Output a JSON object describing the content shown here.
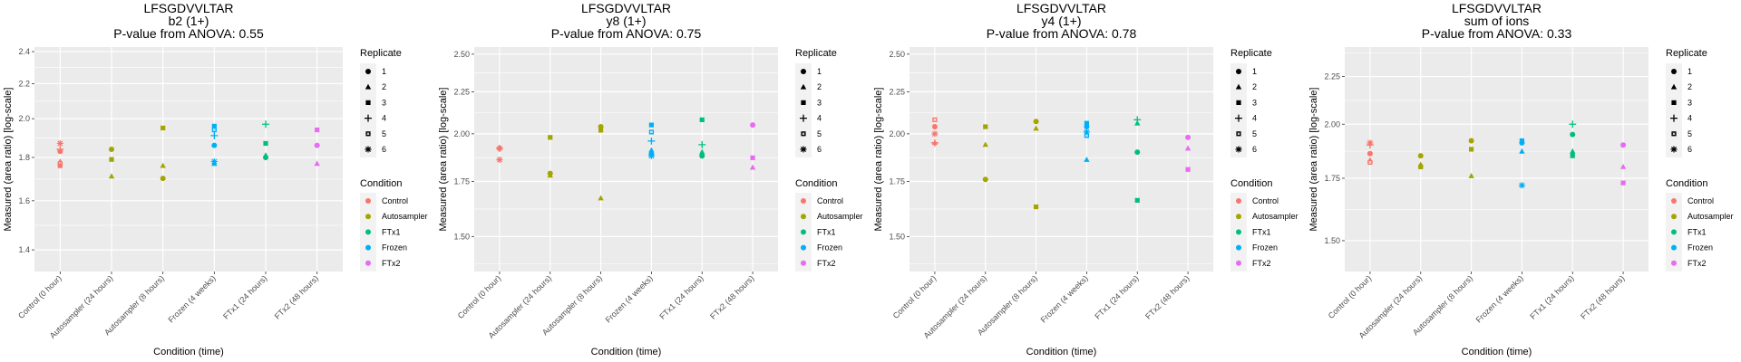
{
  "legend": {
    "shape_title": "Replicate",
    "shape_labels": [
      "1",
      "2",
      "3",
      "4",
      "5",
      "6"
    ],
    "shape_types": [
      "circle",
      "triangle",
      "square",
      "plus",
      "square-cross",
      "asterisk"
    ],
    "color_title": "Condition",
    "color_labels": [
      "Control",
      "Autosampler",
      "FTx1",
      "Frozen",
      "FTx2"
    ],
    "colors": {
      "Control": "#F8766D",
      "Autosampler": "#A3A500",
      "FTx1": "#00BF7D",
      "Frozen": "#00B0F6",
      "FTx2": "#E76BF3"
    }
  },
  "chart_data": [
    {
      "type": "scatter",
      "title": [
        "LFSGDVVLTAR",
        "b2 (1+)",
        "P-value from ANOVA: 0.55"
      ],
      "xlabel": "Condition (time)",
      "ylabel": "Measured (area ratio) [log-scale]",
      "yscale": "log",
      "ylim": [
        1.32,
        2.43
      ],
      "yticks": [
        1.4,
        1.6,
        1.8,
        2.0,
        2.2,
        2.4
      ],
      "ytick_labels": [
        "1.4",
        "1.6",
        "1.8",
        "2.0",
        "2.2",
        "2.4"
      ],
      "categories": [
        "Control (0 hour)",
        "Autosampler (24 hours)",
        "Autosampler (8 hours)",
        "Frozen (4 weeks)",
        "FTx1 (24 hours)",
        "FTx2 (48 hours)"
      ],
      "category_condition": [
        "Control",
        "Autosampler",
        "Autosampler",
        "Frozen",
        "FTx1",
        "FTx2"
      ],
      "grid": true,
      "legend_position": "right",
      "points": [
        {
          "cat": 0,
          "rep": 6,
          "y": 1.87
        },
        {
          "cat": 0,
          "rep": 1,
          "y": 1.83
        },
        {
          "cat": 0,
          "rep": 4,
          "y": 1.84
        },
        {
          "cat": 0,
          "rep": 2,
          "y": 1.78
        },
        {
          "cat": 0,
          "rep": 5,
          "y": 1.77
        },
        {
          "cat": 0,
          "rep": 3,
          "y": 1.76
        },
        {
          "cat": 1,
          "rep": 1,
          "y": 1.84
        },
        {
          "cat": 1,
          "rep": 3,
          "y": 1.79
        },
        {
          "cat": 1,
          "rep": 2,
          "y": 1.71
        },
        {
          "cat": 2,
          "rep": 3,
          "y": 1.95
        },
        {
          "cat": 2,
          "rep": 2,
          "y": 1.76
        },
        {
          "cat": 2,
          "rep": 1,
          "y": 1.7
        },
        {
          "cat": 3,
          "rep": 3,
          "y": 1.96
        },
        {
          "cat": 3,
          "rep": 5,
          "y": 1.94
        },
        {
          "cat": 3,
          "rep": 4,
          "y": 1.91
        },
        {
          "cat": 3,
          "rep": 1,
          "y": 1.86
        },
        {
          "cat": 3,
          "rep": 6,
          "y": 1.78
        },
        {
          "cat": 3,
          "rep": 2,
          "y": 1.77
        },
        {
          "cat": 4,
          "rep": 4,
          "y": 1.97
        },
        {
          "cat": 4,
          "rep": 3,
          "y": 1.87
        },
        {
          "cat": 4,
          "rep": 2,
          "y": 1.81
        },
        {
          "cat": 4,
          "rep": 1,
          "y": 1.8
        },
        {
          "cat": 5,
          "rep": 3,
          "y": 1.94
        },
        {
          "cat": 5,
          "rep": 1,
          "y": 1.86
        },
        {
          "cat": 5,
          "rep": 2,
          "y": 1.77
        }
      ]
    },
    {
      "type": "scatter",
      "title": [
        "LFSGDVVLTAR",
        "y8 (1+)",
        "P-value from ANOVA: 0.75"
      ],
      "xlabel": "Condition (time)",
      "ylabel": "Measured (area ratio) [log-scale]",
      "yscale": "log",
      "ylim": [
        1.36,
        2.55
      ],
      "yticks": [
        1.5,
        1.75,
        2.0,
        2.25,
        2.5
      ],
      "ytick_labels": [
        "1.50",
        "1.75",
        "2.00",
        "2.25",
        "2.50"
      ],
      "categories": [
        "Control (0 hour)",
        "Autosampler (24 hours)",
        "Autosampler (8 hours)",
        "Frozen (4 weeks)",
        "FTx1 (24 hours)",
        "FTx2 (48 hours)"
      ],
      "category_condition": [
        "Control",
        "Autosampler",
        "Autosampler",
        "Frozen",
        "FTx1",
        "FTx2"
      ],
      "grid": true,
      "legend_position": "right",
      "points": [
        {
          "cat": 0,
          "rep": 3,
          "y": 1.92
        },
        {
          "cat": 0,
          "rep": 4,
          "y": 1.92
        },
        {
          "cat": 0,
          "rep": 6,
          "y": 1.86
        },
        {
          "cat": 1,
          "rep": 3,
          "y": 1.98
        },
        {
          "cat": 1,
          "rep": 1,
          "y": 1.79
        },
        {
          "cat": 1,
          "rep": 2,
          "y": 1.78
        },
        {
          "cat": 2,
          "rep": 1,
          "y": 2.04
        },
        {
          "cat": 2,
          "rep": 3,
          "y": 2.02
        },
        {
          "cat": 2,
          "rep": 2,
          "y": 1.67
        },
        {
          "cat": 3,
          "rep": 3,
          "y": 2.05
        },
        {
          "cat": 3,
          "rep": 5,
          "y": 2.01
        },
        {
          "cat": 3,
          "rep": 4,
          "y": 1.96
        },
        {
          "cat": 3,
          "rep": 2,
          "y": 1.91
        },
        {
          "cat": 3,
          "rep": 1,
          "y": 1.89
        },
        {
          "cat": 3,
          "rep": 6,
          "y": 1.88
        },
        {
          "cat": 4,
          "rep": 3,
          "y": 2.08
        },
        {
          "cat": 4,
          "rep": 4,
          "y": 1.94
        },
        {
          "cat": 4,
          "rep": 2,
          "y": 1.9
        },
        {
          "cat": 4,
          "rep": 1,
          "y": 1.88
        },
        {
          "cat": 5,
          "rep": 1,
          "y": 2.05
        },
        {
          "cat": 5,
          "rep": 3,
          "y": 1.87
        },
        {
          "cat": 5,
          "rep": 2,
          "y": 1.82
        }
      ]
    },
    {
      "type": "scatter",
      "title": [
        "LFSGDVVLTAR",
        "y4 (1+)",
        "P-value from ANOVA: 0.78"
      ],
      "xlabel": "Condition (time)",
      "ylabel": "Measured (area ratio) [log-scale]",
      "yscale": "log",
      "ylim": [
        1.36,
        2.55
      ],
      "yticks": [
        1.5,
        1.75,
        2.0,
        2.25,
        2.5
      ],
      "ytick_labels": [
        "1.50",
        "1.75",
        "2.00",
        "2.25",
        "2.50"
      ],
      "categories": [
        "Control (0 hour)",
        "Autosampler (24 hours)",
        "Autosampler (8 hours)",
        "Frozen (4 weeks)",
        "FTx1 (24 hours)",
        "FTx2 (48 hours)"
      ],
      "category_condition": [
        "Control",
        "Autosampler",
        "Autosampler",
        "Frozen",
        "FTx1",
        "FTx2"
      ],
      "grid": true,
      "legend_position": "right",
      "points": [
        {
          "cat": 0,
          "rep": 5,
          "y": 2.08
        },
        {
          "cat": 0,
          "rep": 1,
          "y": 2.04
        },
        {
          "cat": 0,
          "rep": 6,
          "y": 2.0
        },
        {
          "cat": 0,
          "rep": 2,
          "y": 1.95
        },
        {
          "cat": 0,
          "rep": 4,
          "y": 1.95
        },
        {
          "cat": 1,
          "rep": 3,
          "y": 2.04
        },
        {
          "cat": 1,
          "rep": 2,
          "y": 1.94
        },
        {
          "cat": 1,
          "rep": 1,
          "y": 1.76
        },
        {
          "cat": 2,
          "rep": 1,
          "y": 2.07
        },
        {
          "cat": 2,
          "rep": 2,
          "y": 2.03
        },
        {
          "cat": 2,
          "rep": 3,
          "y": 1.63
        },
        {
          "cat": 3,
          "rep": 3,
          "y": 2.06
        },
        {
          "cat": 3,
          "rep": 1,
          "y": 2.04
        },
        {
          "cat": 3,
          "rep": 6,
          "y": 2.01
        },
        {
          "cat": 3,
          "rep": 5,
          "y": 1.99
        },
        {
          "cat": 3,
          "rep": 2,
          "y": 1.86
        },
        {
          "cat": 4,
          "rep": 4,
          "y": 2.08
        },
        {
          "cat": 4,
          "rep": 2,
          "y": 2.06
        },
        {
          "cat": 4,
          "rep": 1,
          "y": 1.9
        },
        {
          "cat": 4,
          "rep": 3,
          "y": 1.66
        },
        {
          "cat": 5,
          "rep": 1,
          "y": 1.98
        },
        {
          "cat": 5,
          "rep": 2,
          "y": 1.92
        },
        {
          "cat": 5,
          "rep": 3,
          "y": 1.81
        }
      ]
    },
    {
      "type": "scatter",
      "title": [
        "LFSGDVVLTAR",
        "sum of ions",
        "P-value from ANOVA: 0.33"
      ],
      "xlabel": "Condition (time)",
      "ylabel": "Measured (area ratio) [log-scale]",
      "yscale": "log",
      "ylim": [
        1.39,
        2.42
      ],
      "yticks": [
        1.5,
        1.75,
        2.0,
        2.25
      ],
      "ytick_labels": [
        "1.50",
        "1.75",
        "2.00",
        "2.25"
      ],
      "categories": [
        "Control (0 hour)",
        "Autosampler (24 hours)",
        "Autosampler (8 hours)",
        "Frozen (4 weeks)",
        "FTx1 (24 hours)",
        "FTx2 (48 hours)"
      ],
      "category_condition": [
        "Control",
        "Autosampler",
        "Autosampler",
        "Frozen",
        "FTx1",
        "FTx2"
      ],
      "grid": true,
      "legend_position": "right",
      "points": [
        {
          "cat": 0,
          "rep": 6,
          "y": 1.91
        },
        {
          "cat": 0,
          "rep": 4,
          "y": 1.9
        },
        {
          "cat": 0,
          "rep": 1,
          "y": 1.86
        },
        {
          "cat": 0,
          "rep": 2,
          "y": 1.83
        },
        {
          "cat": 0,
          "rep": 5,
          "y": 1.82
        },
        {
          "cat": 1,
          "rep": 1,
          "y": 1.85
        },
        {
          "cat": 1,
          "rep": 2,
          "y": 1.81
        },
        {
          "cat": 1,
          "rep": 3,
          "y": 1.8
        },
        {
          "cat": 2,
          "rep": 1,
          "y": 1.92
        },
        {
          "cat": 2,
          "rep": 3,
          "y": 1.88
        },
        {
          "cat": 2,
          "rep": 2,
          "y": 1.76
        },
        {
          "cat": 3,
          "rep": 3,
          "y": 1.92
        },
        {
          "cat": 3,
          "rep": 1,
          "y": 1.91
        },
        {
          "cat": 3,
          "rep": 2,
          "y": 1.87
        },
        {
          "cat": 3,
          "rep": 6,
          "y": 1.72
        },
        {
          "cat": 4,
          "rep": 4,
          "y": 2.0
        },
        {
          "cat": 4,
          "rep": 1,
          "y": 1.95
        },
        {
          "cat": 4,
          "rep": 2,
          "y": 1.87
        },
        {
          "cat": 4,
          "rep": 3,
          "y": 1.85
        },
        {
          "cat": 5,
          "rep": 1,
          "y": 1.9
        },
        {
          "cat": 5,
          "rep": 2,
          "y": 1.8
        },
        {
          "cat": 5,
          "rep": 3,
          "y": 1.73
        }
      ]
    }
  ]
}
